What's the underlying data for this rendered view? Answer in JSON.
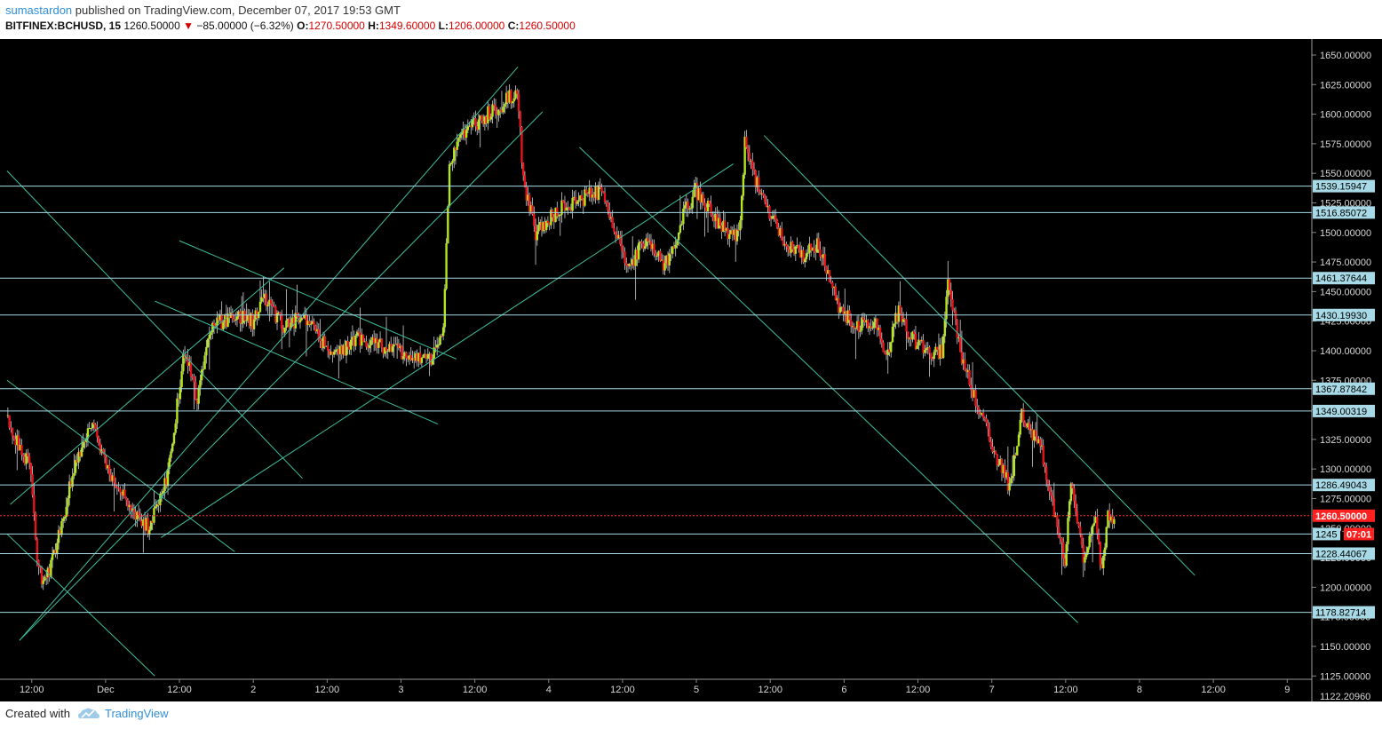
{
  "header": {
    "author": "sumastardon",
    "published_text": "published on TradingView.com, December 07, 2017 19:53 GMT",
    "symbol": "BITFINEX:BCHUSD, 15",
    "last": "1260.50000",
    "change": "−85.00000 (−6.32%)",
    "open_label": "O:",
    "open": "1270.50000",
    "high_label": "H:",
    "high": "1349.60000",
    "low_label": "L:",
    "low": "1206.00000",
    "close_label": "C:",
    "close": "1260.50000"
  },
  "footer": {
    "created_with": "Created with",
    "brand": "TradingView",
    "logo_icon": "tradingview-cloud-icon"
  },
  "colors": {
    "background": "#000000",
    "up": "#b5e61d",
    "down": "#e8141b",
    "wick": "#cfcfcf",
    "trendline": "#3fbf9f",
    "level_line": "#a7d9e6",
    "label_bg": "#a7d9e6",
    "current_line": "#ff2b2b",
    "current_label": "#ff2020",
    "countdown": "#ff2020"
  },
  "chart_data": {
    "type": "candlestick",
    "title": "BITFINEX:BCHUSD, 15",
    "y_axis": {
      "range": [
        1122.2,
        1662.0
      ],
      "ticks": [
        "1650.00000",
        "1625.00000",
        "1600.00000",
        "1575.00000",
        "1550.00000",
        "1525.00000",
        "1500.00000",
        "1475.00000",
        "1450.00000",
        "1425.00000",
        "1400.00000",
        "1375.00000",
        "1350.00000",
        "1325.00000",
        "1300.00000",
        "1275.00000",
        "1250.00000",
        "1225.00000",
        "1200.00000",
        "1175.00000",
        "1150.00000",
        "1125.00000"
      ],
      "bottom_partial_label": "1122.20960"
    },
    "x_axis": {
      "range": [
        "2017-11-30T08:00",
        "2017-12-09T04:00"
      ],
      "ticks": [
        {
          "t": "2017-11-30T12:00",
          "label": "12:00"
        },
        {
          "t": "2017-12-01T00:00",
          "label": "Dec"
        },
        {
          "t": "2017-12-01T12:00",
          "label": "12:00"
        },
        {
          "t": "2017-12-02T00:00",
          "label": "2"
        },
        {
          "t": "2017-12-02T12:00",
          "label": "12:00"
        },
        {
          "t": "2017-12-03T00:00",
          "label": "3"
        },
        {
          "t": "2017-12-03T12:00",
          "label": "12:00"
        },
        {
          "t": "2017-12-04T00:00",
          "label": "4"
        },
        {
          "t": "2017-12-04T12:00",
          "label": "12:00"
        },
        {
          "t": "2017-12-05T00:00",
          "label": "5"
        },
        {
          "t": "2017-12-05T12:00",
          "label": "12:00"
        },
        {
          "t": "2017-12-06T00:00",
          "label": "6"
        },
        {
          "t": "2017-12-06T12:00",
          "label": "12:00"
        },
        {
          "t": "2017-12-07T00:00",
          "label": "7"
        },
        {
          "t": "2017-12-07T12:00",
          "label": "12:00"
        },
        {
          "t": "2017-12-08T00:00",
          "label": "8"
        },
        {
          "t": "2017-12-08T12:00",
          "label": "12:00"
        },
        {
          "t": "2017-12-09T00:00",
          "label": "9"
        }
      ]
    },
    "price_path": [
      {
        "t": "2017-11-30T08:00",
        "p": 1345
      },
      {
        "t": "2017-11-30T10:00",
        "p": 1320
      },
      {
        "t": "2017-11-30T12:00",
        "p": 1300
      },
      {
        "t": "2017-11-30T13:00",
        "p": 1220
      },
      {
        "t": "2017-11-30T14:00",
        "p": 1200
      },
      {
        "t": "2017-11-30T16:00",
        "p": 1230
      },
      {
        "t": "2017-11-30T19:00",
        "p": 1300
      },
      {
        "t": "2017-11-30T22:00",
        "p": 1340
      },
      {
        "t": "2017-12-01T01:00",
        "p": 1290
      },
      {
        "t": "2017-12-01T04:00",
        "p": 1270
      },
      {
        "t": "2017-12-01T07:00",
        "p": 1250
      },
      {
        "t": "2017-12-01T10:00",
        "p": 1290
      },
      {
        "t": "2017-12-01T13:00",
        "p": 1400
      },
      {
        "t": "2017-12-01T15:00",
        "p": 1360
      },
      {
        "t": "2017-12-01T17:00",
        "p": 1420
      },
      {
        "t": "2017-12-01T21:00",
        "p": 1430
      },
      {
        "t": "2017-12-02T00:00",
        "p": 1425
      },
      {
        "t": "2017-12-02T02:00",
        "p": 1445
      },
      {
        "t": "2017-12-02T05:00",
        "p": 1420
      },
      {
        "t": "2017-12-02T08:00",
        "p": 1430
      },
      {
        "t": "2017-12-02T11:00",
        "p": 1410
      },
      {
        "t": "2017-12-02T13:00",
        "p": 1395
      },
      {
        "t": "2017-12-02T17:00",
        "p": 1410
      },
      {
        "t": "2017-12-02T20:00",
        "p": 1405
      },
      {
        "t": "2017-12-03T02:00",
        "p": 1395
      },
      {
        "t": "2017-12-03T05:00",
        "p": 1390
      },
      {
        "t": "2017-12-03T07:00",
        "p": 1420
      },
      {
        "t": "2017-12-03T08:00",
        "p": 1560
      },
      {
        "t": "2017-12-03T10:00",
        "p": 1580
      },
      {
        "t": "2017-12-03T13:00",
        "p": 1595
      },
      {
        "t": "2017-12-03T17:00",
        "p": 1610
      },
      {
        "t": "2017-12-03T19:00",
        "p": 1620
      },
      {
        "t": "2017-12-03T20:00",
        "p": 1545
      },
      {
        "t": "2017-12-03T22:00",
        "p": 1500
      },
      {
        "t": "2017-12-04T02:00",
        "p": 1520
      },
      {
        "t": "2017-12-04T06:00",
        "p": 1530
      },
      {
        "t": "2017-12-04T09:00",
        "p": 1535
      },
      {
        "t": "2017-12-04T11:00",
        "p": 1500
      },
      {
        "t": "2017-12-04T13:00",
        "p": 1470
      },
      {
        "t": "2017-12-04T16:00",
        "p": 1495
      },
      {
        "t": "2017-12-04T19:00",
        "p": 1470
      },
      {
        "t": "2017-12-04T22:00",
        "p": 1515
      },
      {
        "t": "2017-12-05T00:00",
        "p": 1535
      },
      {
        "t": "2017-12-05T04:00",
        "p": 1505
      },
      {
        "t": "2017-12-05T07:00",
        "p": 1495
      },
      {
        "t": "2017-12-05T08:00",
        "p": 1575
      },
      {
        "t": "2017-12-05T10:00",
        "p": 1540
      },
      {
        "t": "2017-12-05T14:00",
        "p": 1495
      },
      {
        "t": "2017-12-05T17:00",
        "p": 1480
      },
      {
        "t": "2017-12-05T20:00",
        "p": 1490
      },
      {
        "t": "2017-12-05T23:00",
        "p": 1440
      },
      {
        "t": "2017-12-06T02:00",
        "p": 1420
      },
      {
        "t": "2017-12-06T05:00",
        "p": 1425
      },
      {
        "t": "2017-12-06T07:00",
        "p": 1395
      },
      {
        "t": "2017-12-06T09:00",
        "p": 1435
      },
      {
        "t": "2017-12-06T11:00",
        "p": 1410
      },
      {
        "t": "2017-12-06T14:00",
        "p": 1400
      },
      {
        "t": "2017-12-06T16:00",
        "p": 1400
      },
      {
        "t": "2017-12-06T17:00",
        "p": 1455
      },
      {
        "t": "2017-12-06T19:00",
        "p": 1400
      },
      {
        "t": "2017-12-06T22:00",
        "p": 1350
      },
      {
        "t": "2017-12-07T01:00",
        "p": 1310
      },
      {
        "t": "2017-12-07T03:00",
        "p": 1285
      },
      {
        "t": "2017-12-07T05:00",
        "p": 1345
      },
      {
        "t": "2017-12-07T08:00",
        "p": 1320
      },
      {
        "t": "2017-12-07T10:00",
        "p": 1270
      },
      {
        "t": "2017-12-07T12:00",
        "p": 1225
      },
      {
        "t": "2017-12-07T13:00",
        "p": 1285
      },
      {
        "t": "2017-12-07T15:00",
        "p": 1225
      },
      {
        "t": "2017-12-07T17:00",
        "p": 1255
      },
      {
        "t": "2017-12-07T18:00",
        "p": 1215
      },
      {
        "t": "2017-12-07T19:00",
        "p": 1260
      },
      {
        "t": "2017-12-07T19:53",
        "p": 1260.5
      }
    ],
    "level_lines": [
      "1539.15947",
      "1516.85072",
      "1461.37644",
      "1430.19930",
      "1367.87842",
      "1349.00319",
      "1286.49043",
      "1245",
      "1228.44067",
      "1178.82714"
    ],
    "current_price": "1260.50000",
    "countdown": "07:01",
    "trend_lines": [
      [
        {
          "t": "2017-11-30T10:00",
          "p": 1155
        },
        {
          "t": "2017-12-03T19:00",
          "p": 1640
        }
      ],
      [
        {
          "t": "2017-11-30T10:00",
          "p": 1155
        },
        {
          "t": "2017-12-03T23:00",
          "p": 1602
        }
      ],
      [
        {
          "t": "2017-11-30T08:30",
          "p": 1270
        },
        {
          "t": "2017-12-02T05:00",
          "p": 1470
        }
      ],
      [
        {
          "t": "2017-11-30T08:00",
          "p": 1552
        },
        {
          "t": "2017-12-02T08:00",
          "p": 1292
        }
      ],
      [
        {
          "t": "2017-11-30T08:00",
          "p": 1375
        },
        {
          "t": "2017-12-01T21:00",
          "p": 1230
        }
      ],
      [
        {
          "t": "2017-11-30T08:00",
          "p": 1245
        },
        {
          "t": "2017-12-01T08:00",
          "p": 1125
        }
      ],
      [
        {
          "t": "2017-12-01T08:00",
          "p": 1442
        },
        {
          "t": "2017-12-03T06:00",
          "p": 1338
        }
      ],
      [
        {
          "t": "2017-12-01T12:00",
          "p": 1493
        },
        {
          "t": "2017-12-03T09:00",
          "p": 1393
        }
      ],
      [
        {
          "t": "2017-12-01T09:00",
          "p": 1242
        },
        {
          "t": "2017-12-05T06:00",
          "p": 1558
        }
      ],
      [
        {
          "t": "2017-12-04T05:00",
          "p": 1572
        },
        {
          "t": "2017-12-07T14:00",
          "p": 1170
        }
      ],
      [
        {
          "t": "2017-12-05T11:00",
          "p": 1582
        },
        {
          "t": "2017-12-08T09:00",
          "p": 1210
        }
      ]
    ]
  }
}
